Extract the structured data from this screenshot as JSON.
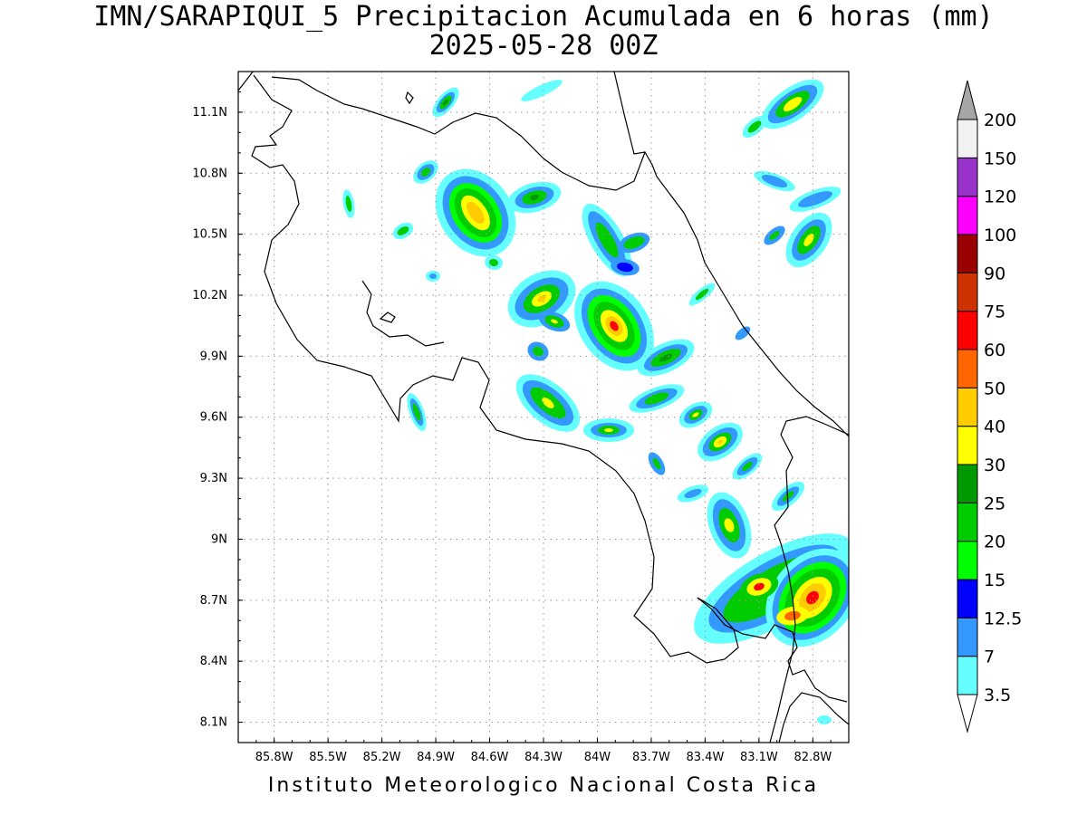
{
  "title": {
    "line1": "IMN/SARAPIQUI_5 Precipitacion Acumulada en 6 horas (mm)",
    "line2": "2025-05-28 00Z"
  },
  "footer": "Instituto Meteorologico Nacional Costa Rica",
  "map": {
    "lon_range": [
      -86.0,
      -82.6
    ],
    "lat_range": [
      8.0,
      11.3
    ],
    "lon_ticks": [
      {
        "value": -85.8,
        "label": "85.8W"
      },
      {
        "value": -85.5,
        "label": "85.5W"
      },
      {
        "value": -85.2,
        "label": "85.2W"
      },
      {
        "value": -84.9,
        "label": "84.9W"
      },
      {
        "value": -84.6,
        "label": "84.6W"
      },
      {
        "value": -84.3,
        "label": "84.3W"
      },
      {
        "value": -84.0,
        "label": "84W"
      },
      {
        "value": -83.7,
        "label": "83.7W"
      },
      {
        "value": -83.4,
        "label": "83.4W"
      },
      {
        "value": -83.1,
        "label": "83.1W"
      },
      {
        "value": -82.8,
        "label": "82.8W"
      }
    ],
    "lat_ticks": [
      {
        "value": 11.1,
        "label": "11.1N"
      },
      {
        "value": 10.8,
        "label": "10.8N"
      },
      {
        "value": 10.5,
        "label": "10.5N"
      },
      {
        "value": 10.2,
        "label": "10.2N"
      },
      {
        "value": 9.9,
        "label": "9.9N"
      },
      {
        "value": 9.6,
        "label": "9.6N"
      },
      {
        "value": 9.3,
        "label": "9.3N"
      },
      {
        "value": 9.0,
        "label": "9N"
      },
      {
        "value": 8.7,
        "label": "8.7N"
      },
      {
        "value": 8.4,
        "label": "8.4N"
      },
      {
        "value": 8.1,
        "label": "8.1N"
      }
    ],
    "grid": true
  },
  "colorbar": {
    "levels": [
      "3.5",
      "7",
      "12.5",
      "15",
      "20",
      "25",
      "30",
      "40",
      "50",
      "60",
      "75",
      "90",
      "100",
      "120",
      "150",
      "200"
    ],
    "colors": [
      "#66ffff",
      "#3399ff",
      "#0000ff",
      "#00ff00",
      "#00cc00",
      "#009900",
      "#ffff00",
      "#ffcc00",
      "#ff6600",
      "#ff0000",
      "#cc3300",
      "#990000",
      "#ff00ff",
      "#9933cc",
      "#f2f2f2"
    ],
    "over_color": "#a6a6a6",
    "under_color": "#ffffff"
  },
  "colors": {
    "background": "#ffffff",
    "grid": "#999999",
    "coast": "#000000"
  }
}
